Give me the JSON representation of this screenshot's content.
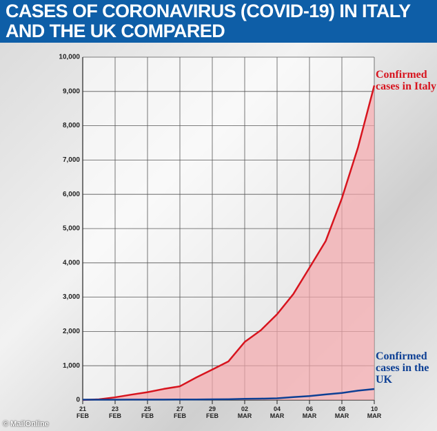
{
  "chart_data": {
    "type": "line",
    "title": "CASES OF CORONAVIRUS (COVID-19) IN ITALY AND THE UK COMPARED",
    "categories": [
      "21 FEB",
      null,
      "23 FEB",
      null,
      "25 FEB",
      null,
      "27 FEB",
      null,
      "29 FEB",
      null,
      "02 MAR",
      null,
      "04 MAR",
      null,
      "06 MAR",
      null,
      "08 MAR",
      null,
      "10 MAR"
    ],
    "series": [
      {
        "name": "Confirmed cases in Italy",
        "color": "#d7141e",
        "area_color": "#f4a6ab",
        "values": [
          3,
          20,
          79,
          157,
          229,
          323,
          400,
          655,
          889,
          1128,
          1694,
          2036,
          2502,
          3089,
          3858,
          4636,
          5883,
          7375,
          9172
        ]
      },
      {
        "name": "Confirmed cases in the UK",
        "color": "#0d3f94",
        "values": [
          9,
          9,
          9,
          13,
          13,
          13,
          15,
          16,
          20,
          23,
          36,
          40,
          51,
          85,
          115,
          163,
          206,
          273,
          321
        ]
      }
    ],
    "ylim": [
      0,
      10000
    ],
    "yticks": [
      0,
      {
        "value": 1000,
        "label": "1,000"
      },
      {
        "value": 2000,
        "label": "2,000"
      },
      {
        "value": 3000,
        "label": "3,000"
      },
      {
        "value": 4000,
        "label": "4,000"
      },
      {
        "value": 5000,
        "label": "5,000"
      },
      {
        "value": 6000,
        "label": "6,000"
      },
      {
        "value": 7000,
        "label": "7,000"
      },
      {
        "value": 8000,
        "label": "8,000"
      },
      {
        "value": 9000,
        "label": "9,000"
      },
      {
        "value": 10000,
        "label": "10,000"
      }
    ],
    "grid": true,
    "source": "© MailOnline"
  }
}
